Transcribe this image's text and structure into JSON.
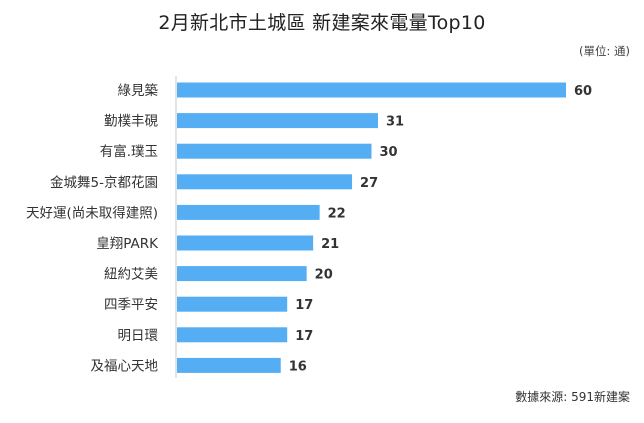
{
  "chart_data": {
    "type": "bar",
    "orientation": "horizontal",
    "title": "2月新北市土城區 新建案來電量Top10",
    "unit_note": "(單位: 通)",
    "source_note": "數據來源: 591新建案",
    "categories": [
      "綠見築",
      "勤樸丰硯",
      "有富.璞玉",
      "金城舞5-京都花園",
      "天好運(尚未取得建照)",
      "皇翔PARK",
      "紐約艾美",
      "四季平安",
      "明日環",
      "及福心天地"
    ],
    "values": [
      60,
      31,
      30,
      27,
      22,
      21,
      20,
      17,
      17,
      16
    ],
    "xlim": [
      0,
      60
    ],
    "grid": false,
    "legend": "none",
    "bar_color": "#55aef3",
    "axis_color": "#c8c8c8"
  }
}
